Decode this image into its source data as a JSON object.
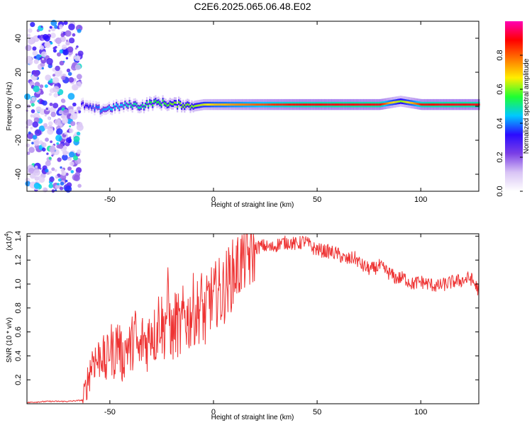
{
  "title": "C2E6.2025.065.06.48.E02",
  "chart_data": [
    {
      "type": "heatmap",
      "name": "spectrogram",
      "xlabel": "Height of straight line (km)",
      "ylabel": "Frequency (Hz)",
      "xlim": [
        -90,
        128
      ],
      "ylim": [
        -50,
        50
      ],
      "xticks": [
        "-50",
        "0",
        "50",
        "100"
      ],
      "yticks": [
        "-40",
        "-20",
        "0",
        "20",
        "40"
      ],
      "colorbar": {
        "label": "Normalized spectral amplitude",
        "range": [
          0,
          1
        ],
        "ticks": [
          "0.0",
          "0.2",
          "0.4",
          "0.6",
          "0.8"
        ],
        "colors": [
          "#ffffff",
          "#d9c4f5",
          "#7b3fe6",
          "#2b0bff",
          "#00c8ff",
          "#1eff32",
          "#ffee00",
          "#ff7700",
          "#ff0000",
          "#ff00b4"
        ]
      },
      "noise_region_x": [
        -90,
        -64
      ],
      "ridge": {
        "x": [
          -64,
          -60,
          -55,
          -50,
          -45,
          -40,
          -35,
          -30,
          -25,
          -20,
          -15,
          -10,
          -5,
          0,
          5,
          10,
          20,
          30,
          40,
          60,
          80,
          85,
          90,
          95,
          100,
          110,
          120,
          128
        ],
        "freq": [
          1,
          -1,
          -2,
          -1,
          0,
          1,
          0,
          2,
          2,
          1,
          1,
          0,
          1,
          1,
          1,
          1,
          1,
          1,
          1,
          1,
          1,
          2,
          3,
          2,
          1,
          1,
          1,
          1
        ],
        "amplitude": [
          0.3,
          0.35,
          0.4,
          0.45,
          0.45,
          0.5,
          0.5,
          0.55,
          0.55,
          0.6,
          0.6,
          0.6,
          0.65,
          0.7,
          0.72,
          0.75,
          0.8,
          0.85,
          0.88,
          0.9,
          0.9,
          0.7,
          0.6,
          0.7,
          0.88,
          0.9,
          0.9,
          0.9
        ]
      }
    },
    {
      "type": "line",
      "name": "snr",
      "xlabel": "Height of straight line (km)",
      "ylabel": "SNR (10 * v/v)",
      "scale_label": "(x10",
      "scale_exp": "4",
      "scale_close": ")",
      "xlim": [
        -90,
        128
      ],
      "ylim": [
        0,
        1.42
      ],
      "xticks": [
        "-50",
        "0",
        "50",
        "100"
      ],
      "yticks": [
        "0.2",
        "0.4",
        "0.6",
        "0.8",
        "1.0",
        "1.2",
        "1.4"
      ],
      "color": "#ee3333",
      "x": [
        -90,
        -80,
        -70,
        -63,
        -62,
        -60,
        -58,
        -56,
        -54,
        -52,
        -50,
        -48,
        -46,
        -44,
        -42,
        -40,
        -38,
        -36,
        -34,
        -32,
        -30,
        -28,
        -26,
        -24,
        -22,
        -20,
        -18,
        -16,
        -14,
        -12,
        -10,
        -8,
        -6,
        -4,
        -2,
        0,
        2,
        4,
        6,
        8,
        10,
        12,
        14,
        16,
        18,
        20,
        24,
        28,
        32,
        36,
        40,
        44,
        48,
        52,
        56,
        60,
        64,
        68,
        72,
        76,
        80,
        84,
        88,
        92,
        96,
        100,
        104,
        108,
        112,
        116,
        120,
        124,
        128
      ],
      "y": [
        0.01,
        0.02,
        0.02,
        0.03,
        0.1,
        0.25,
        0.4,
        0.35,
        0.45,
        0.3,
        0.5,
        0.4,
        0.55,
        0.35,
        0.5,
        0.45,
        0.6,
        0.4,
        0.55,
        0.5,
        0.65,
        0.55,
        0.75,
        0.6,
        0.85,
        0.55,
        0.7,
        0.6,
        0.75,
        0.7,
        0.8,
        0.75,
        0.85,
        0.7,
        0.9,
        0.85,
        0.95,
        0.9,
        1.0,
        1.05,
        1.1,
        1.15,
        1.2,
        1.25,
        1.22,
        1.3,
        1.32,
        1.3,
        1.34,
        1.35,
        1.33,
        1.36,
        1.3,
        1.28,
        1.27,
        1.25,
        1.2,
        1.22,
        1.15,
        1.12,
        1.15,
        1.1,
        1.05,
        1.05,
        1.0,
        1.02,
        1.0,
        0.98,
        1.0,
        1.02,
        1.03,
        1.05,
        0.95
      ]
    }
  ]
}
